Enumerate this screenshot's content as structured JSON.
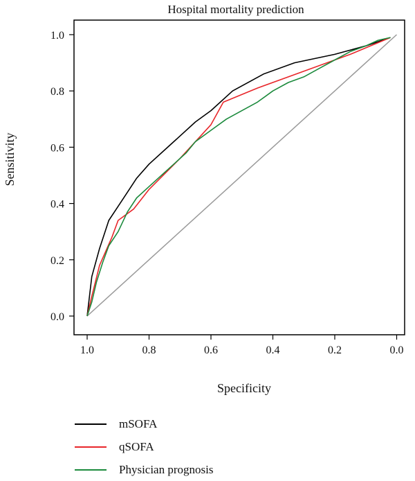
{
  "chart_data": {
    "type": "line",
    "title": "Hospital mortality prediction",
    "xlabel": "Specificity",
    "ylabel": "Sensitivity",
    "xlim": [
      1.03,
      -0.01
    ],
    "ylim": [
      0.0,
      1.0
    ],
    "x_reversed": true,
    "xticks": [
      "1.0",
      "0.8",
      "0.6",
      "0.4",
      "0.2",
      "0.0"
    ],
    "xtick_values": [
      1.0,
      0.8,
      0.6,
      0.4,
      0.2,
      0.0
    ],
    "yticks": [
      "0.0",
      "0.2",
      "0.4",
      "0.6",
      "0.8",
      "1.0"
    ],
    "ytick_values": [
      0.0,
      0.2,
      0.4,
      0.6,
      0.8,
      1.0
    ],
    "grid": false,
    "legend_position": "bottom",
    "reference_line": {
      "color": "#999999",
      "from": [
        1.0,
        0.0
      ],
      "to": [
        0.0,
        1.0
      ]
    },
    "series": [
      {
        "name": "mSOFA",
        "color": "#000000",
        "points": [
          [
            1.0,
            0.0
          ],
          [
            0.985,
            0.14
          ],
          [
            0.96,
            0.24
          ],
          [
            0.93,
            0.34
          ],
          [
            0.9,
            0.39
          ],
          [
            0.87,
            0.44
          ],
          [
            0.84,
            0.49
          ],
          [
            0.8,
            0.54
          ],
          [
            0.75,
            0.59
          ],
          [
            0.7,
            0.64
          ],
          [
            0.65,
            0.69
          ],
          [
            0.6,
            0.73
          ],
          [
            0.53,
            0.8
          ],
          [
            0.43,
            0.86
          ],
          [
            0.33,
            0.9
          ],
          [
            0.2,
            0.93
          ],
          [
            0.1,
            0.96
          ],
          [
            0.02,
            0.99
          ]
        ]
      },
      {
        "name": "qSOFA",
        "color": "#e8262a",
        "points": [
          [
            1.0,
            0.0
          ],
          [
            0.985,
            0.07
          ],
          [
            0.96,
            0.18
          ],
          [
            0.92,
            0.28
          ],
          [
            0.9,
            0.34
          ],
          [
            0.85,
            0.38
          ],
          [
            0.8,
            0.45
          ],
          [
            0.7,
            0.56
          ],
          [
            0.6,
            0.68
          ],
          [
            0.56,
            0.76
          ],
          [
            0.45,
            0.81
          ],
          [
            0.3,
            0.87
          ],
          [
            0.15,
            0.93
          ],
          [
            0.02,
            0.99
          ]
        ]
      },
      {
        "name": "Physician prognosis",
        "color": "#1b8a3c",
        "points": [
          [
            1.0,
            0.0
          ],
          [
            0.985,
            0.05
          ],
          [
            0.97,
            0.12
          ],
          [
            0.95,
            0.19
          ],
          [
            0.93,
            0.25
          ],
          [
            0.9,
            0.3
          ],
          [
            0.87,
            0.37
          ],
          [
            0.84,
            0.42
          ],
          [
            0.8,
            0.46
          ],
          [
            0.76,
            0.5
          ],
          [
            0.72,
            0.54
          ],
          [
            0.68,
            0.58
          ],
          [
            0.65,
            0.62
          ],
          [
            0.6,
            0.66
          ],
          [
            0.55,
            0.7
          ],
          [
            0.5,
            0.73
          ],
          [
            0.45,
            0.76
          ],
          [
            0.4,
            0.8
          ],
          [
            0.35,
            0.83
          ],
          [
            0.3,
            0.85
          ],
          [
            0.25,
            0.88
          ],
          [
            0.2,
            0.91
          ],
          [
            0.15,
            0.94
          ],
          [
            0.1,
            0.96
          ],
          [
            0.06,
            0.98
          ],
          [
            0.02,
            0.99
          ]
        ]
      }
    ]
  }
}
